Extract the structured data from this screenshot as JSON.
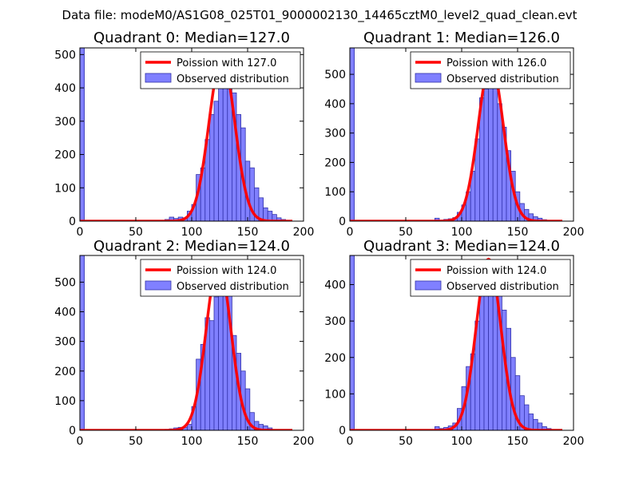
{
  "suptitle": "Data file: modeM0/AS1G08_025T01_9000002130_14465cztM0_level2_quad_clean.evt",
  "colors": {
    "bar_fill": "#8080ff",
    "bar_edge": "#3333aa",
    "curve": "#ff0000",
    "axis": "#000000"
  },
  "chart_data": [
    {
      "type": "bar",
      "title": "Quadrant 0: Median=127.0",
      "xlim": [
        0,
        200
      ],
      "ylim": [
        0,
        520
      ],
      "xticks": [
        "0",
        "50",
        "100",
        "150",
        "200"
      ],
      "yticks": [
        "0",
        "100",
        "200",
        "300",
        "400",
        "500"
      ],
      "legend": [
        "Poission with 127.0",
        "Observed distribution"
      ],
      "legend_position": "top-right",
      "median": 127.0,
      "curve_peak": 490,
      "curve_sigma": 11.5,
      "bin_width": 4,
      "bins": [
        [
          0,
          520
        ],
        [
          76,
          5
        ],
        [
          80,
          12
        ],
        [
          84,
          8
        ],
        [
          88,
          12
        ],
        [
          92,
          10
        ],
        [
          96,
          30
        ],
        [
          100,
          50
        ],
        [
          104,
          140
        ],
        [
          108,
          160
        ],
        [
          112,
          245
        ],
        [
          116,
          320
        ],
        [
          120,
          360
        ],
        [
          124,
          470
        ],
        [
          128,
          490
        ],
        [
          132,
          470
        ],
        [
          136,
          385
        ],
        [
          140,
          320
        ],
        [
          144,
          280
        ],
        [
          148,
          180
        ],
        [
          152,
          160
        ],
        [
          156,
          100
        ],
        [
          160,
          70
        ],
        [
          164,
          40
        ],
        [
          168,
          30
        ],
        [
          172,
          20
        ],
        [
          176,
          10
        ],
        [
          180,
          5
        ]
      ]
    },
    {
      "type": "bar",
      "title": "Quadrant 1: Median=126.0",
      "xlim": [
        0,
        200
      ],
      "ylim": [
        0,
        590
      ],
      "xticks": [
        "0",
        "50",
        "100",
        "150",
        "200"
      ],
      "yticks": [
        "0",
        "100",
        "200",
        "300",
        "400",
        "500"
      ],
      "legend": [
        "Poission with 126.0",
        "Observed distribution"
      ],
      "legend_position": "top-right",
      "median": 126.0,
      "curve_peak": 540,
      "curve_sigma": 11.2,
      "bin_width": 4,
      "bins": [
        [
          0,
          590
        ],
        [
          76,
          10
        ],
        [
          80,
          3
        ],
        [
          84,
          6
        ],
        [
          88,
          8
        ],
        [
          92,
          12
        ],
        [
          96,
          30
        ],
        [
          100,
          55
        ],
        [
          104,
          100
        ],
        [
          108,
          170
        ],
        [
          112,
          280
        ],
        [
          116,
          420
        ],
        [
          120,
          450
        ],
        [
          124,
          570
        ],
        [
          128,
          460
        ],
        [
          132,
          400
        ],
        [
          136,
          320
        ],
        [
          140,
          240
        ],
        [
          144,
          170
        ],
        [
          148,
          100
        ],
        [
          152,
          60
        ],
        [
          156,
          40
        ],
        [
          160,
          25
        ],
        [
          164,
          15
        ],
        [
          168,
          10
        ],
        [
          172,
          5
        ]
      ]
    },
    {
      "type": "bar",
      "title": "Quadrant 2: Median=124.0",
      "xlim": [
        0,
        200
      ],
      "ylim": [
        0,
        590
      ],
      "xticks": [
        "0",
        "50",
        "100",
        "150",
        "200"
      ],
      "yticks": [
        "0",
        "100",
        "200",
        "300",
        "400",
        "500"
      ],
      "legend": [
        "Poission with 124.0",
        "Observed distribution"
      ],
      "legend_position": "top-right",
      "median": 124.0,
      "curve_peak": 565,
      "curve_sigma": 11.0,
      "bin_width": 4,
      "bins": [
        [
          0,
          590
        ],
        [
          76,
          3
        ],
        [
          80,
          5
        ],
        [
          84,
          8
        ],
        [
          88,
          10
        ],
        [
          92,
          10
        ],
        [
          96,
          20
        ],
        [
          100,
          80
        ],
        [
          104,
          240
        ],
        [
          108,
          290
        ],
        [
          112,
          380
        ],
        [
          116,
          370
        ],
        [
          120,
          450
        ],
        [
          124,
          520
        ],
        [
          128,
          560
        ],
        [
          132,
          480
        ],
        [
          136,
          320
        ],
        [
          140,
          260
        ],
        [
          144,
          200
        ],
        [
          148,
          140
        ],
        [
          152,
          60
        ],
        [
          156,
          30
        ],
        [
          160,
          20
        ],
        [
          164,
          15
        ],
        [
          168,
          8
        ]
      ]
    },
    {
      "type": "bar",
      "title": "Quadrant 3: Median=124.0",
      "xlim": [
        0,
        200
      ],
      "ylim": [
        0,
        480
      ],
      "xticks": [
        "0",
        "50",
        "100",
        "150",
        "200"
      ],
      "yticks": [
        "0",
        "100",
        "200",
        "300",
        "400"
      ],
      "legend": [
        "Poission with 124.0",
        "Observed distribution"
      ],
      "legend_position": "top-right",
      "median": 124.0,
      "curve_peak": 470,
      "curve_sigma": 11.0,
      "bin_width": 4,
      "bins": [
        [
          0,
          480
        ],
        [
          76,
          10
        ],
        [
          80,
          5
        ],
        [
          84,
          8
        ],
        [
          88,
          12
        ],
        [
          92,
          20
        ],
        [
          96,
          60
        ],
        [
          100,
          120
        ],
        [
          104,
          175
        ],
        [
          108,
          210
        ],
        [
          112,
          300
        ],
        [
          116,
          370
        ],
        [
          120,
          420
        ],
        [
          124,
          460
        ],
        [
          128,
          420
        ],
        [
          132,
          370
        ],
        [
          136,
          330
        ],
        [
          140,
          280
        ],
        [
          144,
          200
        ],
        [
          148,
          150
        ],
        [
          152,
          95
        ],
        [
          156,
          70
        ],
        [
          160,
          45
        ],
        [
          164,
          30
        ],
        [
          168,
          20
        ],
        [
          172,
          10
        ],
        [
          176,
          5
        ]
      ]
    }
  ]
}
